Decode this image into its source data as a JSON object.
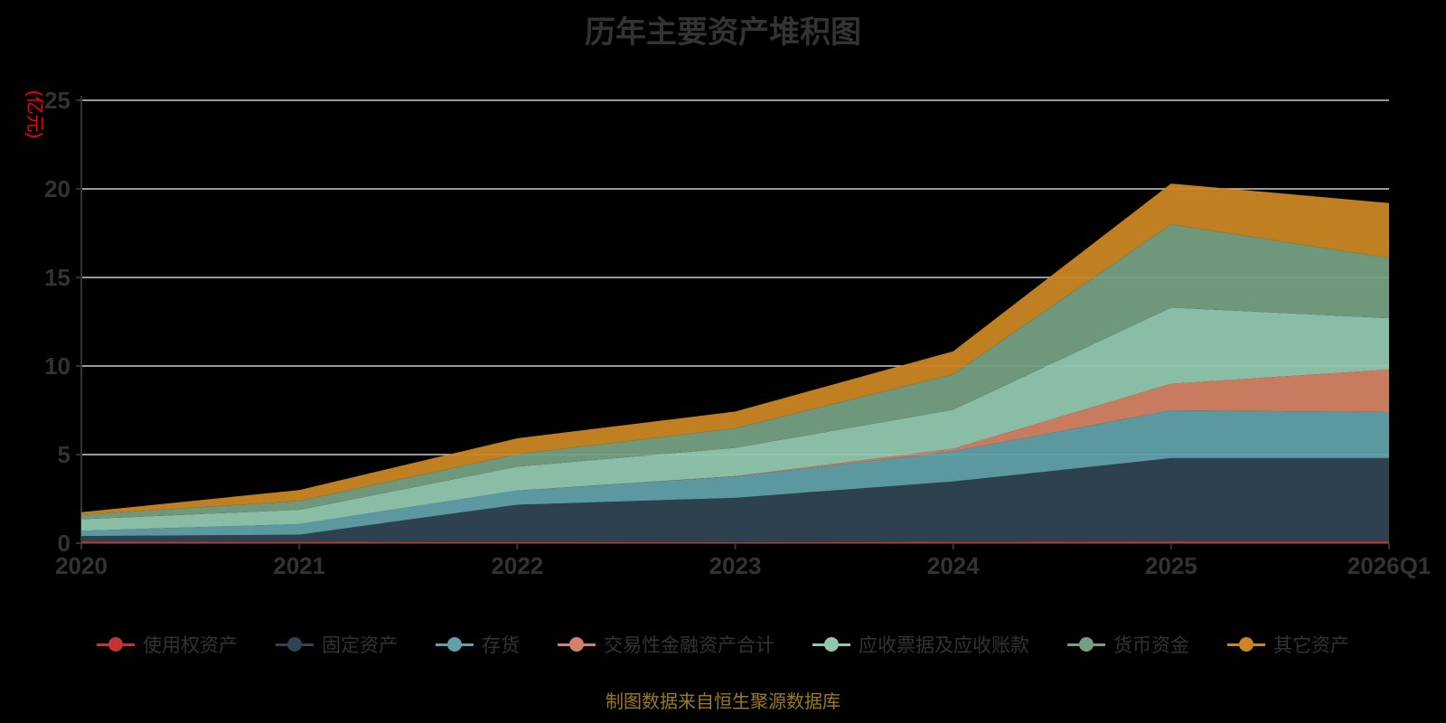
{
  "title": "历年主要资产堆积图",
  "y_axis_name": "(亿元)",
  "footer": "制图数据来自恒生聚源数据库",
  "chart_data": {
    "type": "area",
    "stacked": true,
    "title": "历年主要资产堆积图",
    "ylabel": "(亿元)",
    "xlabel": "",
    "ylim": [
      0,
      25
    ],
    "y_ticks": [
      0,
      5,
      10,
      15,
      20,
      25
    ],
    "grid": true,
    "legend_position": "bottom",
    "background": "#000000",
    "gridline_color": "#cccccc",
    "axis_color": "#333333",
    "label_color": "#333333",
    "categories": [
      "2020",
      "2021",
      "2022",
      "2023",
      "2024",
      "2025",
      "2026Q1"
    ],
    "series": [
      {
        "name": "使用权资产",
        "color": "#c23531",
        "values": [
          0.1,
          0.08,
          0.07,
          0.06,
          0.08,
          0.1,
          0.1
        ]
      },
      {
        "name": "固定资产",
        "color": "#2f4554",
        "values": [
          0.3,
          0.4,
          2.1,
          2.5,
          3.4,
          4.7,
          4.7
        ]
      },
      {
        "name": "存货",
        "color": "#61a0a8",
        "values": [
          0.3,
          0.6,
          0.8,
          1.2,
          1.7,
          2.7,
          2.6
        ]
      },
      {
        "name": "交易性金融资产合计",
        "color": "#d48265",
        "values": [
          0.0,
          0.0,
          0.0,
          0.02,
          0.15,
          1.5,
          2.4
        ]
      },
      {
        "name": "应收票据及应收账款",
        "color": "#91c7ae",
        "values": [
          0.65,
          0.8,
          1.35,
          1.6,
          2.2,
          4.3,
          2.9
        ]
      },
      {
        "name": "货币资金",
        "color": "#749f83",
        "values": [
          0.25,
          0.5,
          0.7,
          1.1,
          2.0,
          4.7,
          3.4
        ]
      },
      {
        "name": "其它资产",
        "color": "#ca8622",
        "values": [
          0.15,
          0.62,
          0.9,
          0.95,
          1.3,
          2.3,
          3.1
        ]
      }
    ],
    "stack_totals": [
      1.75,
      3.0,
      5.92,
      7.43,
      10.83,
      20.3,
      19.2
    ]
  }
}
